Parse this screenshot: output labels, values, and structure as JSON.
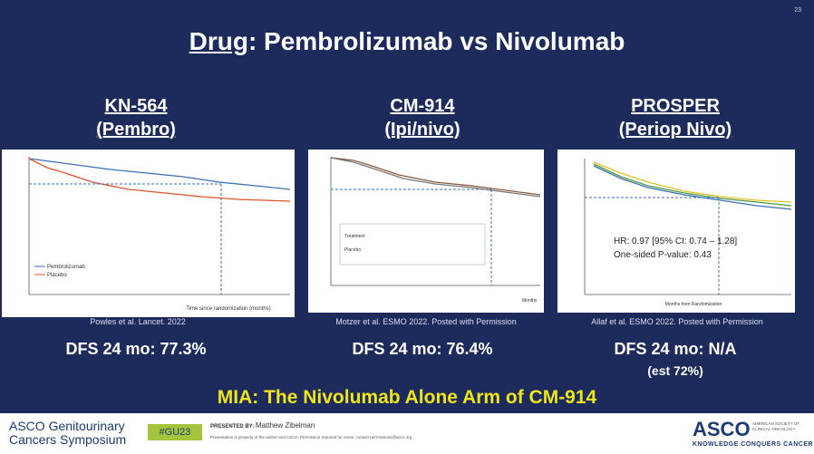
{
  "slide_number": "23",
  "title": {
    "keyword": "Drug",
    "rest": ": Pembrolizumab vs Nivolumab"
  },
  "columns": [
    {
      "trial": "KN-564",
      "subtitle": "(Pembro)",
      "citation": "Powles et al. Lancet. 2022",
      "result": "DFS 24 mo: 77.3%",
      "figure": {
        "x_label": "Time since randomization (months)",
        "legend": [
          "Pembrolizumab",
          "Placebo"
        ]
      }
    },
    {
      "trial": "CM-914",
      "subtitle": "(Ipi/nivo)",
      "citation": "Motzer et al. ESMO 2022. Posted with Permission",
      "result": "DFS 24 mo: 76.4%",
      "figure": {
        "x_label": "Months",
        "legend": [
          "Treatment",
          "Placebo"
        ]
      }
    },
    {
      "trial": "PROSPER",
      "subtitle": "(Periop Nivo)",
      "citation": "Allaf et al. ESMO 2022. Posted with Permission",
      "result": "DFS 24 mo: N/A",
      "note": "(est 72%)",
      "figure": {
        "x_label": "Months from Randomization",
        "hr": "HR: 0.97 [95% CI: 0.74 – 1.28]",
        "p_value": "One-sided P-value: 0.43"
      }
    }
  ],
  "highlight": "MIA: The Nivolumab Alone Arm of CM-914",
  "footer": {
    "meeting_line1": "ASCO Genitourinary",
    "meeting_line2": "Cancers Symposium",
    "hashtag": "#GU23",
    "presented_by_label": "PRESENTED BY:",
    "presenter": "Matthew Zibelman",
    "disclaimer": "Presentation is property of the author and ASCO. Permission required for reuse; contact permissions@asco.org",
    "org": "ASCO",
    "org_name": "AMERICAN SOCIETY OF CLINICAL ONCOLOGY",
    "tagline": "KNOWLEDGE CONQUERS CANCER"
  }
}
